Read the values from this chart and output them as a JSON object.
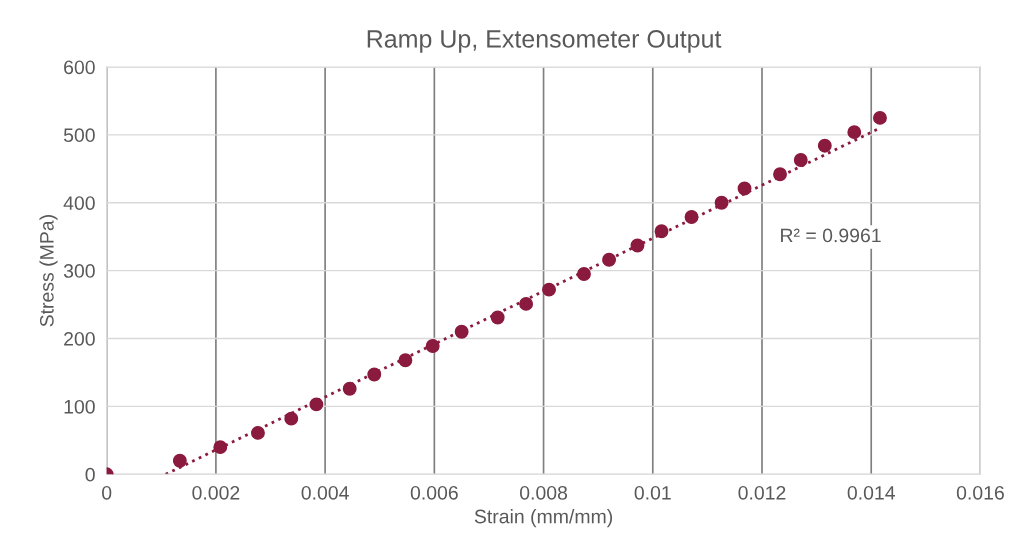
{
  "chart_data": {
    "type": "scatter",
    "title": "Ramp Up, Extensometer Output",
    "xlabel": "Strain (mm/mm)",
    "ylabel": "Stress (MPa)",
    "xlim": [
      0,
      0.016
    ],
    "xticks": [
      0,
      0.002,
      0.004,
      0.006,
      0.008,
      0.01,
      0.012,
      0.014,
      0.016
    ],
    "ylim": [
      0,
      600
    ],
    "yticks": [
      0,
      100,
      200,
      300,
      400,
      500,
      600
    ],
    "grid": true,
    "marker": "circle",
    "legend": false,
    "annotations": [
      "R² = 0.9961"
    ],
    "series": [
      {
        "color": "#8b1a3f",
        "x": [
          0,
          0.00134,
          0.00208,
          0.00277,
          0.00338,
          0.00384,
          0.00445,
          0.0049,
          0.00547,
          0.00597,
          0.0065,
          0.00716,
          0.00768,
          0.0081,
          0.00874,
          0.0092,
          0.00972,
          0.01016,
          0.01071,
          0.01126,
          0.01168,
          0.01233,
          0.01271,
          0.01315,
          0.01369,
          0.01416
        ],
        "values": [
          0,
          20,
          40,
          61,
          82,
          103,
          126,
          147,
          168,
          189,
          210,
          231,
          251,
          272,
          295,
          316,
          337,
          358,
          379,
          400,
          421,
          442,
          463,
          484,
          504,
          525
        ]
      },
      {
        "type": "line",
        "color": "#8b1a3f",
        "line_style": "dotted",
        "marker": "none",
        "x": [
          0.00108,
          0.01416
        ],
        "values": [
          0,
          510
        ]
      }
    ]
  }
}
